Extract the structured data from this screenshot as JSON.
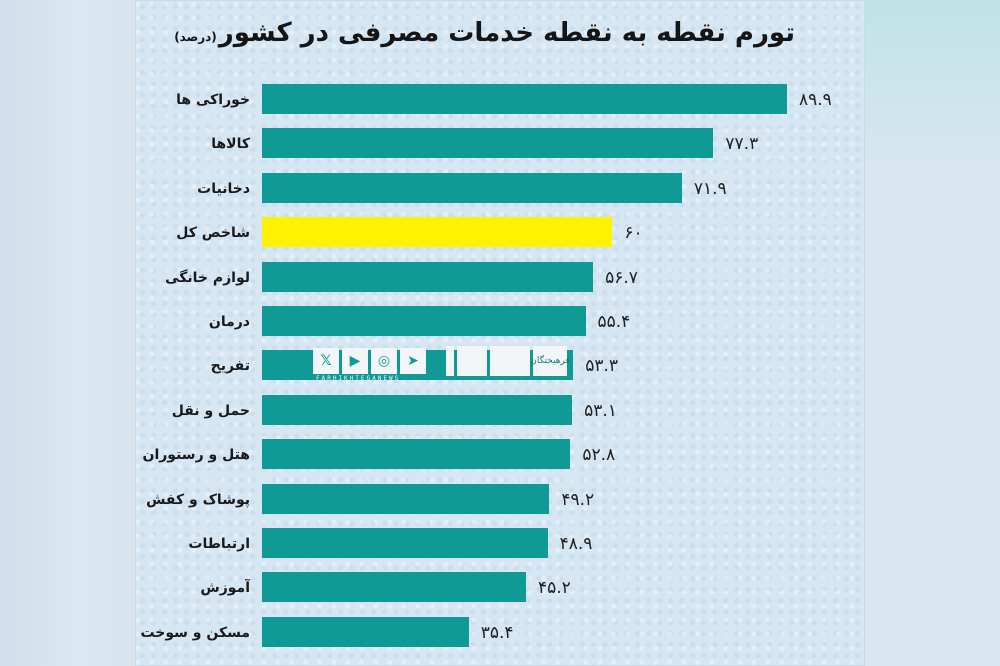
{
  "chart_data": {
    "type": "bar",
    "orientation": "horizontal",
    "title": "تورم نقطه به نقطه خدمات مصرفی در کشور",
    "unit": "(درصد)",
    "xlabel": "",
    "ylabel": "",
    "categories": [
      "خوراکی ها",
      "کالاها",
      "دخانیات",
      "شاخص کل",
      "لوازم خانگی",
      "درمان",
      "تفریح",
      "حمل و نقل",
      "هتل و رستوران",
      "پوشاک و کفش",
      "ارتباطات",
      "آموزش",
      "مسکن و سوخت"
    ],
    "values": [
      89.9,
      77.3,
      71.9,
      60,
      56.7,
      55.4,
      53.3,
      53.1,
      52.8,
      49.2,
      48.9,
      45.2,
      35.4
    ],
    "value_labels": [
      "۸۹.۹",
      "۷۷.۳",
      "۷۱.۹",
      "۶۰",
      "۵۶.۷",
      "۵۵.۴",
      "۵۳.۳",
      "۵۳.۱",
      "۵۲.۸",
      "۴۹.۲",
      "۴۸.۹",
      "۴۵.۲",
      "۳۵.۴"
    ],
    "highlight_index": 3,
    "colors": {
      "bar": "#0f9a95",
      "highlight": "#fff200",
      "background": "#d6e6f3"
    },
    "grid": false,
    "legend": "none",
    "xlim": [
      0,
      95
    ]
  },
  "watermark": {
    "icons": [
      "x-icon",
      "youtube-icon",
      "instagram-icon",
      "telegram-icon"
    ],
    "glyphs": [
      "𝕏",
      "▶",
      "◎",
      "➤"
    ],
    "logo_text": "فرهیختگان",
    "handle": "FARHIKHTEGANEWS"
  }
}
